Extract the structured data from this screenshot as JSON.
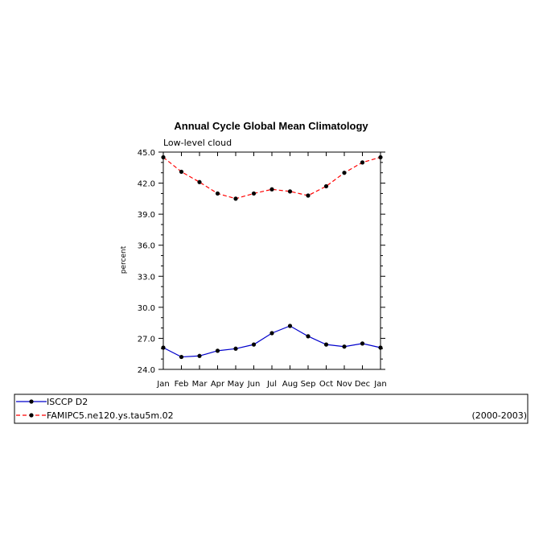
{
  "chart_data": {
    "type": "line",
    "title": "Annual Cycle Global Mean Climatology",
    "subtitle": "Low-level cloud",
    "xlabel": "",
    "ylabel": "percent",
    "categories": [
      "Jan",
      "Feb",
      "Mar",
      "Apr",
      "May",
      "Jun",
      "Jul",
      "Aug",
      "Sep",
      "Oct",
      "Nov",
      "Dec",
      "Jan"
    ],
    "ylim": [
      24.0,
      45.0
    ],
    "yticks": [
      "24.0",
      "27.0",
      "30.0",
      "33.0",
      "36.0",
      "39.0",
      "42.0",
      "45.0"
    ],
    "grid": false,
    "series": [
      {
        "name": "ISCCP D2",
        "color": "#0000cc",
        "style": "solid",
        "values": [
          26.1,
          25.2,
          25.3,
          25.8,
          26.0,
          26.4,
          27.5,
          28.2,
          27.2,
          26.4,
          26.2,
          26.5,
          26.1
        ]
      },
      {
        "name": "FAMIPC5.ne120.ys.tau5m.02",
        "color": "#ff0000",
        "style": "dashed",
        "values": [
          44.5,
          43.1,
          42.1,
          41.0,
          40.5,
          41.0,
          41.4,
          41.2,
          40.8,
          41.7,
          43.0,
          44.0,
          44.5
        ]
      }
    ],
    "legend": {
      "placement": "bottom",
      "period": "(2000-2003)"
    }
  }
}
